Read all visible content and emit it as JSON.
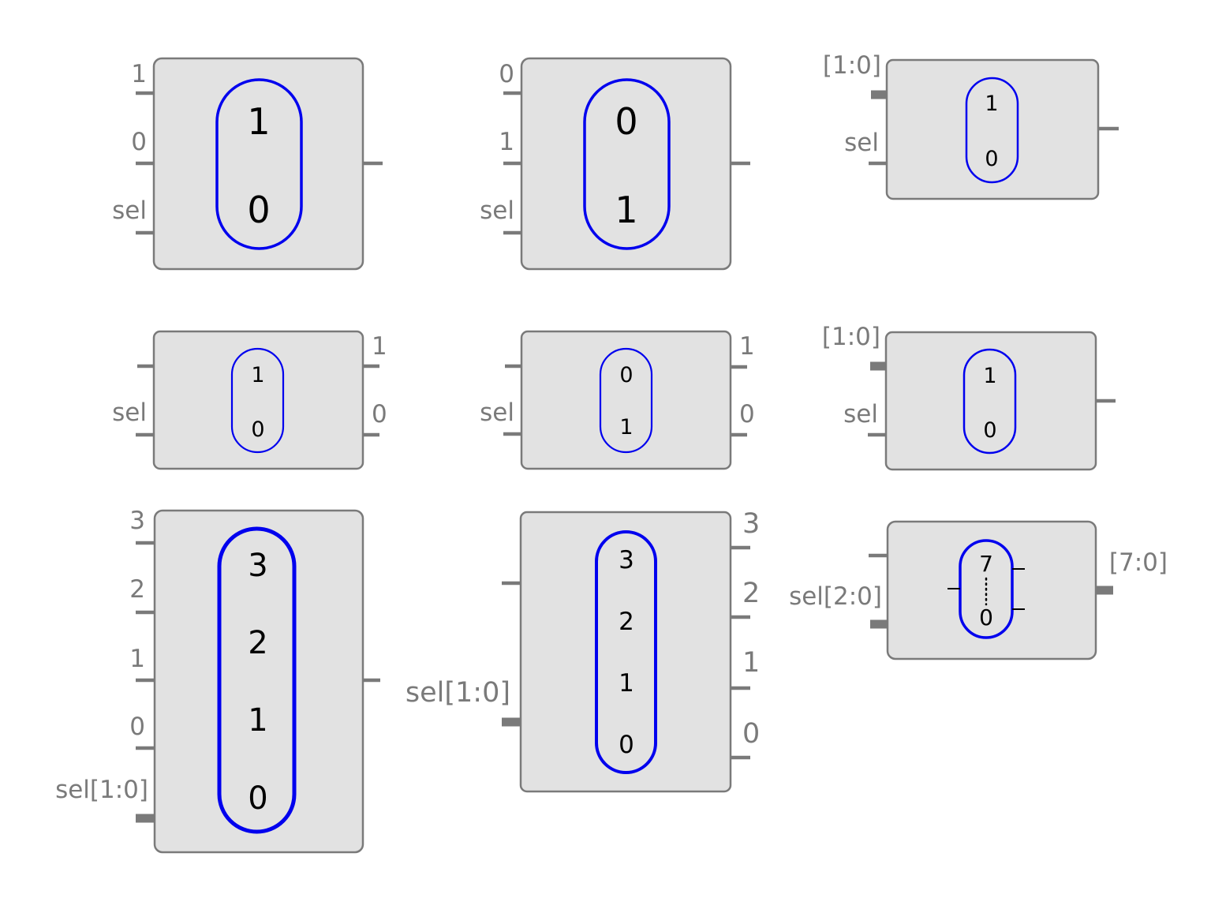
{
  "diagram": {
    "colors": {
      "box_fill": "#e2e2e2",
      "box_stroke": "#7a7a7a",
      "label": "#7a7a7a",
      "selector": "#0000ee",
      "value": "#000000"
    },
    "muxes": [
      {
        "id": "mux-2to1-a",
        "input_labels": [
          "1",
          "0"
        ],
        "select_label": "sel",
        "selector_values": [
          "1",
          "0"
        ]
      },
      {
        "id": "mux-2to1-b",
        "input_labels": [
          "0",
          "1"
        ],
        "select_label": "sel",
        "selector_values": [
          "0",
          "1"
        ]
      },
      {
        "id": "mux-bus-1",
        "input_labels": [
          "[1:0]"
        ],
        "select_label": "sel",
        "selector_values": [
          "1",
          "0"
        ]
      },
      {
        "id": "demux-a",
        "output_labels": [
          "1",
          "0"
        ],
        "select_label": "sel",
        "selector_values": [
          "1",
          "0"
        ]
      },
      {
        "id": "demux-b",
        "output_labels": [
          "1",
          "0"
        ],
        "select_label": "sel",
        "selector_values": [
          "0",
          "1"
        ]
      },
      {
        "id": "mux-bus-2",
        "input_labels": [
          "[1:0]"
        ],
        "select_label": "sel",
        "selector_values": [
          "1",
          "0"
        ]
      },
      {
        "id": "mux-4to1",
        "input_labels": [
          "3",
          "2",
          "1",
          "0"
        ],
        "select_label": "sel[1:0]",
        "selector_values": [
          "3",
          "2",
          "1",
          "0"
        ]
      },
      {
        "id": "demux-4",
        "output_labels": [
          "3",
          "2",
          "1",
          "0"
        ],
        "select_label": "sel[1:0]",
        "selector_values": [
          "3",
          "2",
          "1",
          "0"
        ]
      },
      {
        "id": "demux-8",
        "output_labels": [
          "[7:0]"
        ],
        "select_label": "sel[2:0]",
        "selector_values": [
          "7",
          "0"
        ]
      }
    ]
  }
}
